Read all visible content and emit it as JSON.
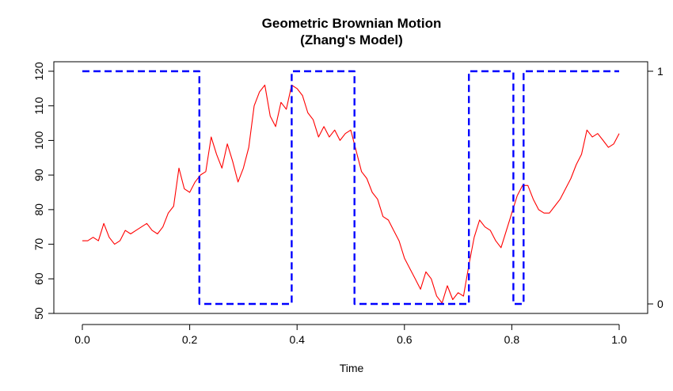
{
  "chart_data": {
    "type": "line",
    "title": "Geometric Brownian Motion",
    "subtitle": "(Zhang's Model)",
    "xlabel": "Time",
    "ylabel": "",
    "xlim": [
      0,
      1
    ],
    "ylim": [
      50,
      120
    ],
    "y2lim": [
      0,
      1
    ],
    "grid": false,
    "legend": "none",
    "x_ticks": [
      "0.0",
      "0.2",
      "0.4",
      "0.6",
      "0.8",
      "1.0"
    ],
    "y_ticks": [
      "50",
      "60",
      "70",
      "80",
      "90",
      "100",
      "110",
      "120"
    ],
    "y2_ticks": [
      "0",
      "1"
    ],
    "series": [
      {
        "axis": "left",
        "color": "#ff0000",
        "style": "solid",
        "x": [
          0.0,
          0.01,
          0.02,
          0.03,
          0.04,
          0.05,
          0.06,
          0.07,
          0.08,
          0.09,
          0.1,
          0.11,
          0.12,
          0.13,
          0.14,
          0.15,
          0.16,
          0.17,
          0.18,
          0.19,
          0.2,
          0.21,
          0.22,
          0.23,
          0.24,
          0.25,
          0.26,
          0.27,
          0.28,
          0.29,
          0.3,
          0.31,
          0.32,
          0.33,
          0.34,
          0.35,
          0.36,
          0.37,
          0.38,
          0.39,
          0.4,
          0.41,
          0.42,
          0.43,
          0.44,
          0.45,
          0.46,
          0.47,
          0.48,
          0.49,
          0.5,
          0.51,
          0.52,
          0.53,
          0.54,
          0.55,
          0.56,
          0.57,
          0.58,
          0.59,
          0.6,
          0.61,
          0.62,
          0.63,
          0.64,
          0.65,
          0.66,
          0.67,
          0.68,
          0.69,
          0.7,
          0.71,
          0.72,
          0.73,
          0.74,
          0.75,
          0.76,
          0.77,
          0.78,
          0.79,
          0.8,
          0.81,
          0.82,
          0.83,
          0.84,
          0.85,
          0.86,
          0.87,
          0.88,
          0.89,
          0.9,
          0.91,
          0.92,
          0.93,
          0.94,
          0.95,
          0.96,
          0.97,
          0.98,
          0.99,
          1.0
        ],
        "values": [
          71,
          71,
          72,
          71,
          76,
          72,
          70,
          71,
          74,
          73,
          74,
          75,
          76,
          74,
          73,
          75,
          79,
          81,
          92,
          86,
          85,
          88,
          90,
          91,
          101,
          96,
          92,
          99,
          94,
          88,
          92,
          98,
          110,
          114,
          116,
          107,
          104,
          111,
          109,
          116,
          115,
          113,
          108,
          106,
          101,
          104,
          101,
          103,
          100,
          102,
          103,
          97,
          91,
          89,
          85,
          83,
          78,
          77,
          74,
          71,
          66,
          63,
          60,
          57,
          62,
          60,
          55,
          53,
          58,
          54,
          56,
          55,
          64,
          72,
          77,
          75,
          74,
          71,
          69,
          74,
          79,
          84,
          87,
          87,
          83,
          80,
          79,
          79,
          81,
          83,
          86,
          89,
          93,
          96,
          103,
          101,
          102,
          100,
          98,
          99,
          102
        ]
      },
      {
        "axis": "right",
        "color": "#0000ff",
        "style": "dashed",
        "x": [
          0.0,
          0.218,
          0.218,
          0.39,
          0.39,
          0.507,
          0.507,
          0.72,
          0.72,
          0.803,
          0.803,
          0.822,
          0.822,
          1.0
        ],
        "values": [
          1,
          1,
          0,
          0,
          1,
          1,
          0,
          0,
          1,
          1,
          0,
          0,
          1,
          1
        ]
      }
    ]
  }
}
